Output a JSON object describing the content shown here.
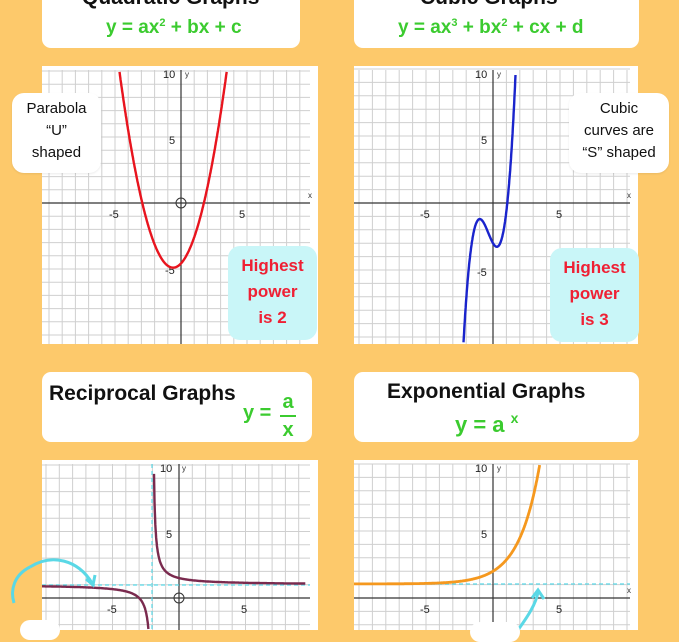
{
  "colors": {
    "background": "#fdc96b",
    "formula_green": "#3bcb2f",
    "quadratic_curve": "#e8141e",
    "cubic_curve": "#1a24cc",
    "reciprocal_curve": "#7a2a4e",
    "exponential_curve": "#f5981e",
    "asymptote": "#5ad8e6",
    "power_box": "#c9f6f8",
    "power_text": "#ef2034"
  },
  "quadratic": {
    "title": "Quadratic Graphs",
    "formula_main": "y = ax",
    "formula_sup": "2",
    "formula_rest": " + bx + c",
    "note_lines": [
      "Parabola",
      "“U”",
      "shaped"
    ],
    "power_lines": [
      "Highest",
      "power",
      "is 2"
    ],
    "axis": {
      "x_label": "x",
      "y_label": "y",
      "ticks_x": [
        "-5",
        "5"
      ],
      "ticks_y": [
        "10",
        "5",
        "-5"
      ]
    }
  },
  "cubic": {
    "title": "Cubic Graphs",
    "formula_a": "y = ax",
    "formula_sup1": "3",
    "formula_b": " + bx",
    "formula_sup2": "2",
    "formula_c": " + cx + d",
    "note_lines": [
      "Cubic",
      "curves are",
      "“S” shaped"
    ],
    "power_lines": [
      "Highest",
      "power",
      "is 3"
    ],
    "axis": {
      "x_label": "x",
      "y_label": "y",
      "ticks_x": [
        "-5",
        "5"
      ],
      "ticks_y": [
        "10",
        "5",
        "-5"
      ]
    }
  },
  "reciprocal": {
    "title": "Reciprocal Graphs",
    "formula_prefix": "y =",
    "numerator": "a",
    "denominator": "x",
    "axis": {
      "x_label": "x",
      "y_label": "y",
      "ticks_x": [
        "-5",
        "5"
      ],
      "ticks_y": [
        "10",
        "5"
      ]
    }
  },
  "exponential": {
    "title": "Exponential Graphs",
    "formula_main": "y = a",
    "formula_sup": "x",
    "axis": {
      "x_label": "x",
      "y_label": "y",
      "ticks_x": [
        "-5",
        "5"
      ],
      "ticks_y": [
        "10",
        "5"
      ]
    }
  }
}
